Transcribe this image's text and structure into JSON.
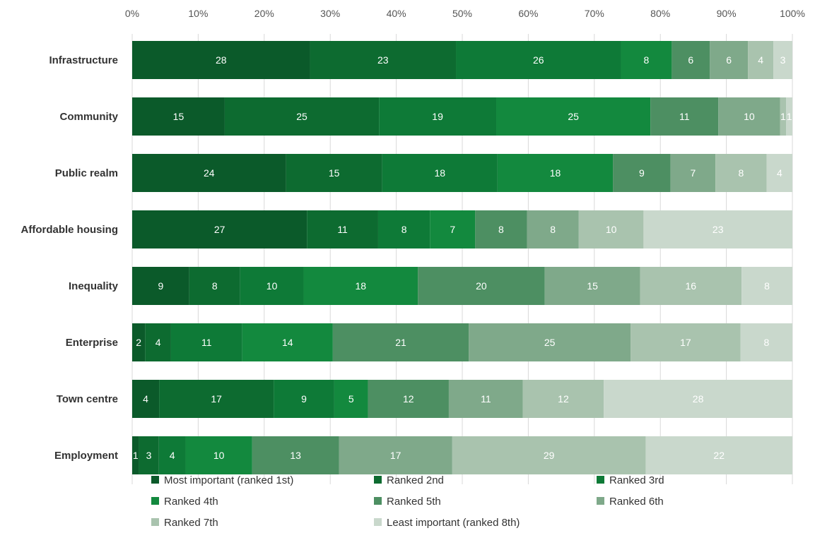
{
  "chart_data": {
    "type": "bar",
    "orientation": "horizontal",
    "stacked": "percent",
    "xlim": [
      0,
      100
    ],
    "x_ticks": [
      "0%",
      "10%",
      "20%",
      "30%",
      "40%",
      "50%",
      "60%",
      "70%",
      "80%",
      "90%",
      "100%"
    ],
    "grid": true,
    "legend_position": "bottom",
    "categories": [
      "Infrastructure",
      "Community",
      "Public realm",
      "Affordable housing",
      "Inequality",
      "Enterprise",
      "Town centre",
      "Employment"
    ],
    "series": [
      {
        "name": "Most important (ranked 1st)",
        "color": "#0b5a2a",
        "values": [
          28,
          15,
          24,
          27,
          9,
          2,
          4,
          1
        ]
      },
      {
        "name": "Ranked 2nd",
        "color": "#0d6b30",
        "values": [
          23,
          25,
          15,
          11,
          8,
          4,
          17,
          3
        ]
      },
      {
        "name": "Ranked 3rd",
        "color": "#0e7a37",
        "values": [
          26,
          19,
          18,
          8,
          10,
          11,
          9,
          4
        ]
      },
      {
        "name": "Ranked 4th",
        "color": "#13893e",
        "values": [
          8,
          25,
          18,
          7,
          18,
          14,
          5,
          10
        ]
      },
      {
        "name": "Ranked 5th",
        "color": "#4d8f62",
        "values": [
          6,
          11,
          9,
          8,
          20,
          21,
          12,
          13
        ]
      },
      {
        "name": "Ranked 6th",
        "color": "#7fa98a",
        "values": [
          6,
          10,
          7,
          8,
          15,
          25,
          11,
          17
        ]
      },
      {
        "name": "Ranked 7th",
        "color": "#a9c3ae",
        "values": [
          4,
          1,
          8,
          10,
          16,
          17,
          12,
          29
        ]
      },
      {
        "name": "Least important (ranked 8th)",
        "color": "#c9d8cc",
        "values": [
          3,
          1,
          4,
          23,
          8,
          8,
          28,
          22
        ]
      }
    ]
  }
}
